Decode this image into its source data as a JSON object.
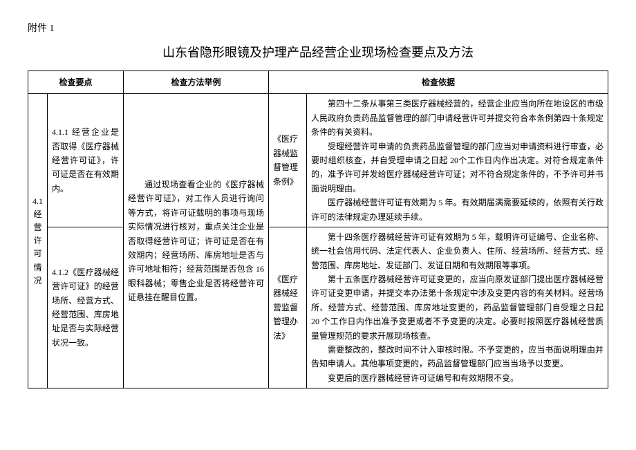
{
  "attachment_label": "附件 1",
  "main_title": "山东省隐形眼镜及护理产品经营企业现场检查要点及方法",
  "headers": {
    "points": "检查要点",
    "method": "检查方法举例",
    "basis": "检查依据"
  },
  "section": {
    "id": "4.1",
    "name": "经 营许 可情况"
  },
  "rows": [
    {
      "point": "4.1.1 经营企业是否取得《医疗器械经营许可证》，许可证是否在有效期内。",
      "basis_name": "《医疗器械监督管理条例》",
      "basis_text": [
        "第四十二条从事第三类医疗器械经营的，经营企业应当向所在地设区的市级人民政府负责药品监督管理的部门申请经营许可并提交符合本条例第四十条规定条件的有关资料。",
        "受理经营许可申请的负责药品监督管理的部门应当对申请资料进行审查，必要时组织核查，并自受理申请之日起 20个工作日内作出决定。对符合规定条件的，准予许可并发给医疗器械经营许可证；对不符合规定条件的，不予许可并书面说明理由。",
        "医疗器械经营许可证有效期为 5 年。有效期届满需要延续的，依照有关行政许可的法律规定办理延续手续。"
      ]
    },
    {
      "point": "4.1.2《医疗器械经营许可证》的经营场所、经营方式、经营范围、库房地址是否与实际经营状况一致。",
      "basis_name": "《医疗器械经营监督管理办法》",
      "basis_text": [
        "第十四条医疗器械经营许可证有效期为 5 年，载明许可证编号、企业名称、统一社会信用代码、法定代表人、企业负责人、住所、经营场所、经营方式、经营范围、库房地址、发证部门、发证日期和有效期限等事项。",
        "第十五条医疗器械经营许可证变更的，应当向原发证部门提出医疗器械经营许可证变更申请，并提交本办法第十条规定中涉及变更内容的有关材料。经营场所、经营方式、经营范围、库房地址变更的，药品监督管理部门自受理之日起 20 个工作日内作出准予变更或者不予变更的决定。必要时按照医疗器械经营质量管理规范的要求开展现场核查。",
        "需要整改的，整改时间不计入审核时限。不予变更的，应当书面说明理由并告知申请人。其他事项变更的，药品监督管理部门应当当场予以变更。",
        "变更后的医疗器械经营许可证编号和有效期限不变。"
      ]
    }
  ],
  "method_text": "通过现场查看企业的《医疗器械经营许可证》，对工作人员进行询问等方式，将许可证载明的事项与现场实际情况进行核对，重点关注企业是否取得经营许可证；许可证是否在有效期内；经营场所、库房地址是否与许可地址相符；经营范围是否包含 16 眼科器械；零售企业是否将经营许可证悬挂在醒目位置。"
}
